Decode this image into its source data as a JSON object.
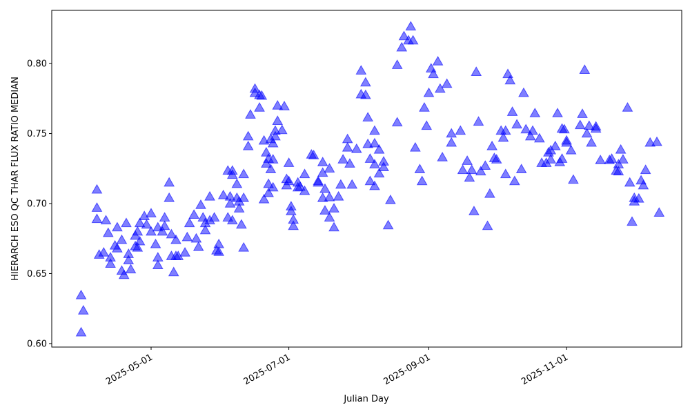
{
  "chart_data": {
    "type": "scatter",
    "xlabel": "Julian Day",
    "ylabel": "HIERARCH ESO QC THAR FLUX RATIO MEDIAN",
    "color": "blue",
    "marker": "triangle",
    "xlim": [
      "2025-03-18",
      "2025-12-22"
    ],
    "xticks": [
      "2025-05-01",
      "2025-07-01",
      "2025-09-01",
      "2025-11-01"
    ],
    "ylim": [
      0.5975,
      0.838
    ],
    "yticks": [
      {
        "value": 0.6,
        "label": "0.60"
      },
      0.65,
      {
        "value": 0.7,
        "label": "0.70"
      },
      0.75,
      {
        "value": 0.8,
        "label": "0.80"
      }
    ],
    "x": [
      "2025-03-31",
      "2025-04-01",
      "2025-03-31",
      "2025-04-07",
      "2025-04-07",
      "2025-04-07",
      "2025-04-08",
      "2025-04-10",
      "2025-04-11",
      "2025-04-12",
      "2025-04-13",
      "2025-04-13",
      "2025-04-15",
      "2025-04-16",
      "2025-04-16",
      "2025-04-18",
      "2025-04-18",
      "2025-04-19",
      "2025-04-20",
      "2025-04-21",
      "2025-04-21",
      "2025-04-22",
      "2025-04-24",
      "2025-04-24",
      "2025-04-25",
      "2025-04-25",
      "2025-04-26",
      "2025-04-26",
      "2025-04-28",
      "2025-04-29",
      "2025-05-01",
      "2025-05-01",
      "2025-05-03",
      "2025-05-04",
      "2025-05-04",
      "2025-05-04",
      "2025-05-06",
      "2025-05-07",
      "2025-05-07",
      "2025-05-09",
      "2025-05-09",
      "2025-05-10",
      "2025-05-10",
      "2025-05-11",
      "2025-05-12",
      "2025-05-12",
      "2025-05-13",
      "2025-05-16",
      "2025-05-17",
      "2025-05-18",
      "2025-05-20",
      "2025-05-21",
      "2025-05-22",
      "2025-05-23",
      "2025-05-24",
      "2025-05-25",
      "2025-05-25",
      "2025-05-27",
      "2025-05-27",
      "2025-05-29",
      "2025-05-30",
      "2025-05-31",
      "2025-05-31",
      "2025-06-02",
      "2025-06-04",
      "2025-06-04",
      "2025-06-05",
      "2025-06-05",
      "2025-06-06",
      "2025-06-06",
      "2025-06-06",
      "2025-06-08",
      "2025-06-08",
      "2025-06-09",
      "2025-06-09",
      "2025-06-10",
      "2025-06-11",
      "2025-06-11",
      "2025-06-11",
      "2025-06-13",
      "2025-06-13",
      "2025-06-14",
      "2025-06-16",
      "2025-06-16",
      "2025-06-18",
      "2025-06-18",
      "2025-06-19",
      "2025-06-20",
      "2025-06-20",
      "2025-06-21",
      "2025-06-21",
      "2025-06-22",
      "2025-06-22",
      "2025-06-22",
      "2025-06-23",
      "2025-06-23",
      "2025-06-24",
      "2025-06-24",
      "2025-06-24",
      "2025-06-25",
      "2025-06-25",
      "2025-06-26",
      "2025-06-26",
      "2025-06-28",
      "2025-06-29",
      "2025-06-30",
      "2025-06-30",
      "2025-07-01",
      "2025-07-01",
      "2025-07-02",
      "2025-07-02",
      "2025-07-03",
      "2025-07-03",
      "2025-07-05",
      "2025-07-05",
      "2025-07-06",
      "2025-07-08",
      "2025-07-08",
      "2025-07-11",
      "2025-07-12",
      "2025-07-14",
      "2025-07-14",
      "2025-07-16",
      "2025-07-16",
      "2025-07-16",
      "2025-07-17",
      "2025-07-17",
      "2025-07-19",
      "2025-07-19",
      "2025-07-19",
      "2025-07-21",
      "2025-07-21",
      "2025-07-23",
      "2025-07-24",
      "2025-07-25",
      "2025-07-27",
      "2025-07-27",
      "2025-07-28",
      "2025-07-29",
      "2025-07-31",
      "2025-08-02",
      "2025-08-02",
      "2025-08-04",
      "2025-08-04",
      "2025-08-05",
      "2025-08-05",
      "2025-08-06",
      "2025-08-06",
      "2025-08-08",
      "2025-08-08",
      "2025-08-08",
      "2025-08-08",
      "2025-08-10",
      "2025-08-10",
      "2025-08-12",
      "2025-08-12",
      "2025-08-14",
      "2025-08-15",
      "2025-08-18",
      "2025-08-18",
      "2025-08-20",
      "2025-08-21",
      "2025-08-23",
      "2025-08-24",
      "2025-08-25",
      "2025-08-26",
      "2025-08-28",
      "2025-08-29",
      "2025-08-30",
      "2025-08-31",
      "2025-09-01",
      "2025-09-02",
      "2025-09-03",
      "2025-09-05",
      "2025-09-06",
      "2025-09-07",
      "2025-09-09",
      "2025-09-11",
      "2025-09-11",
      "2025-09-15",
      "2025-09-16",
      "2025-09-18",
      "2025-09-19",
      "2025-09-20",
      "2025-09-21",
      "2025-09-22",
      "2025-09-23",
      "2025-09-24",
      "2025-09-26",
      "2025-09-27",
      "2025-09-28",
      "2025-09-29",
      "2025-09-30",
      "2025-10-01",
      "2025-10-03",
      "2025-10-04",
      "2025-10-05",
      "2025-10-05",
      "2025-10-06",
      "2025-10-07",
      "2025-10-08",
      "2025-10-09",
      "2025-10-10",
      "2025-10-12",
      "2025-10-13",
      "2025-10-14",
      "2025-10-16",
      "2025-10-17",
      "2025-10-18",
      "2025-10-20",
      "2025-10-21",
      "2025-10-23",
      "2025-10-24",
      "2025-10-25",
      "2025-10-25",
      "2025-10-27",
      "2025-10-28",
      "2025-10-29",
      "2025-10-30",
      "2025-10-30",
      "2025-10-31",
      "2025-11-01",
      "2025-11-01",
      "2025-11-03",
      "2025-11-04",
      "2025-11-07",
      "2025-11-08",
      "2025-11-09",
      "2025-11-10",
      "2025-11-11",
      "2025-11-12",
      "2025-11-14",
      "2025-11-14",
      "2025-11-16",
      "2025-11-20",
      "2025-11-21",
      "2025-11-23",
      "2025-11-24",
      "2025-11-24",
      "2025-11-25",
      "2025-11-26",
      "2025-11-28",
      "2025-11-29",
      "2025-11-30",
      "2025-12-01",
      "2025-12-01",
      "2025-12-03",
      "2025-12-04",
      "2025-12-05",
      "2025-12-06",
      "2025-12-08",
      "2025-12-11",
      "2025-12-12"
    ],
    "values": [
      0.6345,
      0.6236,
      0.608,
      0.71,
      0.697,
      0.689,
      0.6635,
      0.665,
      0.688,
      0.679,
      0.6615,
      0.657,
      0.67,
      0.683,
      0.668,
      0.674,
      0.652,
      0.649,
      0.686,
      0.6595,
      0.664,
      0.653,
      0.6695,
      0.677,
      0.6685,
      0.68,
      0.673,
      0.686,
      0.691,
      0.685,
      0.693,
      0.68,
      0.671,
      0.656,
      0.6615,
      0.683,
      0.68,
      0.69,
      0.684,
      0.715,
      0.704,
      0.6625,
      0.678,
      0.651,
      0.674,
      0.6625,
      0.6625,
      0.665,
      0.676,
      0.686,
      0.692,
      0.675,
      0.669,
      0.699,
      0.69,
      0.681,
      0.686,
      0.705,
      0.688,
      0.69,
      0.6665,
      0.6655,
      0.671,
      0.706,
      0.7235,
      0.69,
      0.7,
      0.705,
      0.688,
      0.7235,
      0.7205,
      0.714,
      0.704,
      0.6965,
      0.7015,
      0.685,
      0.6685,
      0.704,
      0.721,
      0.741,
      0.748,
      0.7635,
      0.782,
      0.779,
      0.7685,
      0.7775,
      0.777,
      0.703,
      0.745,
      0.7365,
      0.7285,
      0.732,
      0.714,
      0.7075,
      0.746,
      0.7245,
      0.743,
      0.7315,
      0.7115,
      0.752,
      0.748,
      0.77,
      0.759,
      0.7525,
      0.7695,
      0.7175,
      0.713,
      0.729,
      0.716,
      0.698,
      0.6945,
      0.6885,
      0.684,
      0.7115,
      0.715,
      0.712,
      0.709,
      0.721,
      0.735,
      0.7345,
      0.715,
      0.716,
      0.7295,
      0.704,
      0.722,
      0.7105,
      0.695,
      0.725,
      0.7045,
      0.69,
      0.6965,
      0.683,
      0.705,
      0.7135,
      0.7315,
      0.746,
      0.74,
      0.7285,
      0.7135,
      0.739,
      0.795,
      0.778,
      0.7865,
      0.7775,
      0.7615,
      0.7425,
      0.732,
      0.716,
      0.728,
      0.7125,
      0.743,
      0.752,
      0.7385,
      0.7215,
      0.73,
      0.726,
      0.6845,
      0.7025,
      0.758,
      0.799,
      0.8115,
      0.8195,
      0.8165,
      0.8265,
      0.8165,
      0.74,
      0.7245,
      0.716,
      0.7685,
      0.7555,
      0.779,
      0.7965,
      0.7925,
      0.8015,
      0.782,
      0.733,
      0.7855,
      0.75,
      0.7435,
      0.752,
      0.724,
      0.7305,
      0.7185,
      0.724,
      0.6945,
      0.794,
      0.7585,
      0.723,
      0.727,
      0.684,
      0.707,
      0.741,
      0.7325,
      0.7315,
      0.752,
      0.747,
      0.752,
      0.721,
      0.7925,
      0.788,
      0.7655,
      0.716,
      0.7565,
      0.7245,
      0.779,
      0.753,
      0.748,
      0.752,
      0.7645,
      0.7465,
      0.729,
      0.729,
      0.7365,
      0.738,
      0.7315,
      0.741,
      0.7645,
      0.7295,
      0.732,
      0.7535,
      0.753,
      0.745,
      0.7435,
      0.738,
      0.717,
      0.756,
      0.764,
      0.7955,
      0.75,
      0.7555,
      0.7435,
      0.755,
      0.7535,
      0.731,
      0.731,
      0.732,
      0.7235,
      0.728,
      0.723,
      0.7385,
      0.7315,
      0.7685,
      0.715,
      0.687,
      0.704,
      0.7015,
      0.7035,
      0.7165,
      0.713,
      0.724,
      0.7435,
      0.744,
      0.6935
    ]
  }
}
